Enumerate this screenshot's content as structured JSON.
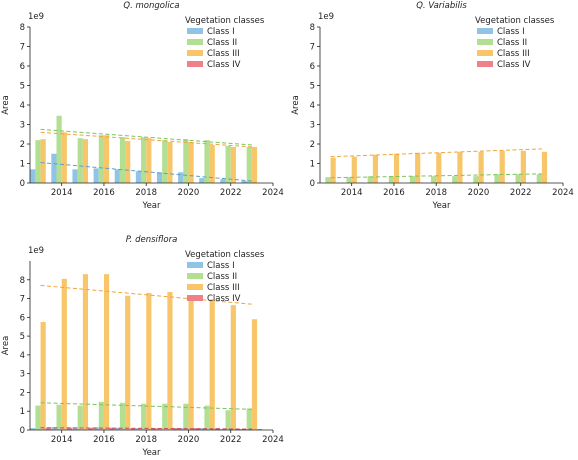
{
  "colors": {
    "Class I": "#90C4E6",
    "Class II": "#B3DF93",
    "Class III": "#F8C66A",
    "Class IV": "#EE8089"
  },
  "chart_data": [
    {
      "type": "bar",
      "title": "Q. mongolica",
      "xlabel": "Year",
      "ylabel": "Area",
      "multiplier": "1e9",
      "ylim": [
        0,
        8
      ],
      "yticks": [
        0,
        1,
        2,
        3,
        4,
        5,
        6,
        7,
        8
      ],
      "xlim": [
        2012.5,
        2024
      ],
      "xticks": [
        2014,
        2016,
        2018,
        2020,
        2022,
        2024
      ],
      "legend": {
        "title": "Vegetation classes",
        "position": "top-right"
      },
      "categories": [
        2013,
        2014,
        2015,
        2016,
        2017,
        2018,
        2019,
        2020,
        2021,
        2022,
        2023
      ],
      "series": [
        {
          "name": "Class I",
          "values": [
            0.7,
            1.5,
            0.7,
            0.75,
            0.7,
            0.6,
            0.55,
            0.55,
            0.25,
            0.2,
            0.1
          ]
        },
        {
          "name": "Class II",
          "values": [
            2.2,
            3.45,
            2.3,
            2.45,
            2.35,
            2.35,
            2.2,
            2.25,
            2.2,
            1.9,
            1.85
          ]
        },
        {
          "name": "Class III",
          "values": [
            2.25,
            2.6,
            2.25,
            2.45,
            2.15,
            2.3,
            2.1,
            2.1,
            1.95,
            1.85,
            1.85
          ]
        },
        {
          "name": "Class IV",
          "values": [
            0,
            0,
            0,
            0,
            0,
            0,
            0,
            0,
            0,
            0,
            0
          ]
        }
      ],
      "trend_lines": [
        {
          "series": "Class I",
          "from": [
            2013,
            1.05
          ],
          "to": [
            2023,
            0.1
          ]
        },
        {
          "series": "Class II",
          "from": [
            2013,
            2.75
          ],
          "to": [
            2023,
            1.95
          ]
        },
        {
          "series": "Class III",
          "from": [
            2013,
            2.6
          ],
          "to": [
            2023,
            1.85
          ]
        }
      ]
    },
    {
      "type": "bar",
      "title": "Q. Variabilis",
      "xlabel": "Year",
      "ylabel": "Area",
      "multiplier": "1e9",
      "ylim": [
        0,
        8
      ],
      "yticks": [
        0,
        1,
        2,
        3,
        4,
        5,
        6,
        7,
        8
      ],
      "xlim": [
        2012.5,
        2024
      ],
      "xticks": [
        2014,
        2016,
        2018,
        2020,
        2022,
        2024
      ],
      "legend": {
        "title": "Vegetation classes",
        "position": "top-right"
      },
      "categories": [
        2013,
        2014,
        2015,
        2016,
        2017,
        2018,
        2019,
        2020,
        2021,
        2022,
        2023
      ],
      "series": [
        {
          "name": "Class I",
          "values": [
            0,
            0,
            0,
            0,
            0,
            0,
            0,
            0,
            0,
            0,
            0
          ]
        },
        {
          "name": "Class II",
          "values": [
            0.3,
            0.3,
            0.35,
            0.35,
            0.35,
            0.35,
            0.35,
            0.35,
            0.45,
            0.45,
            0.45
          ]
        },
        {
          "name": "Class III",
          "values": [
            1.3,
            1.35,
            1.45,
            1.5,
            1.55,
            1.55,
            1.6,
            1.6,
            1.65,
            1.65,
            1.6
          ]
        },
        {
          "name": "Class IV",
          "values": [
            0,
            0,
            0,
            0,
            0,
            0,
            0,
            0,
            0,
            0,
            0
          ]
        }
      ],
      "trend_lines": [
        {
          "series": "Class II",
          "from": [
            2013,
            0.27
          ],
          "to": [
            2023,
            0.47
          ]
        },
        {
          "series": "Class III",
          "from": [
            2013,
            1.35
          ],
          "to": [
            2023,
            1.75
          ]
        }
      ]
    },
    {
      "type": "bar",
      "title": "P. densiflora",
      "xlabel": "Year",
      "ylabel": "Area",
      "multiplier": "1e9",
      "ylim": [
        0,
        9
      ],
      "yticks": [
        0,
        1,
        2,
        3,
        4,
        5,
        6,
        7,
        8
      ],
      "xlim": [
        2012.5,
        2024
      ],
      "xticks": [
        2014,
        2016,
        2018,
        2020,
        2022,
        2024
      ],
      "legend": {
        "title": "Vegetation classes",
        "position": "top-right"
      },
      "categories": [
        2013,
        2014,
        2015,
        2016,
        2017,
        2018,
        2019,
        2020,
        2021,
        2022,
        2023
      ],
      "series": [
        {
          "name": "Class I",
          "values": [
            0.1,
            0.15,
            0.15,
            0.15,
            0.12,
            0.1,
            0.1,
            0.1,
            0.1,
            0.05,
            0.05
          ]
        },
        {
          "name": "Class II",
          "values": [
            1.3,
            1.35,
            1.3,
            1.5,
            1.45,
            1.4,
            1.4,
            1.4,
            1.3,
            1.05,
            1.15
          ]
        },
        {
          "name": "Class III",
          "values": [
            5.75,
            8.05,
            8.3,
            8.3,
            7.15,
            7.3,
            7.35,
            7.15,
            6.95,
            6.65,
            5.9
          ]
        },
        {
          "name": "Class IV",
          "values": [
            0.12,
            0.12,
            0.12,
            0.12,
            0.1,
            0.1,
            0.1,
            0.1,
            0.1,
            0.05,
            0.05
          ]
        }
      ],
      "trend_lines": [
        {
          "series": "Class I",
          "from": [
            2013,
            0.12
          ],
          "to": [
            2023,
            0.05
          ]
        },
        {
          "series": "Class II",
          "from": [
            2013,
            1.45
          ],
          "to": [
            2023,
            1.1
          ]
        },
        {
          "series": "Class III",
          "from": [
            2013,
            7.7
          ],
          "to": [
            2023,
            6.7
          ]
        },
        {
          "series": "Class IV",
          "from": [
            2013,
            0.12
          ],
          "to": [
            2023,
            0.05
          ]
        }
      ]
    }
  ]
}
